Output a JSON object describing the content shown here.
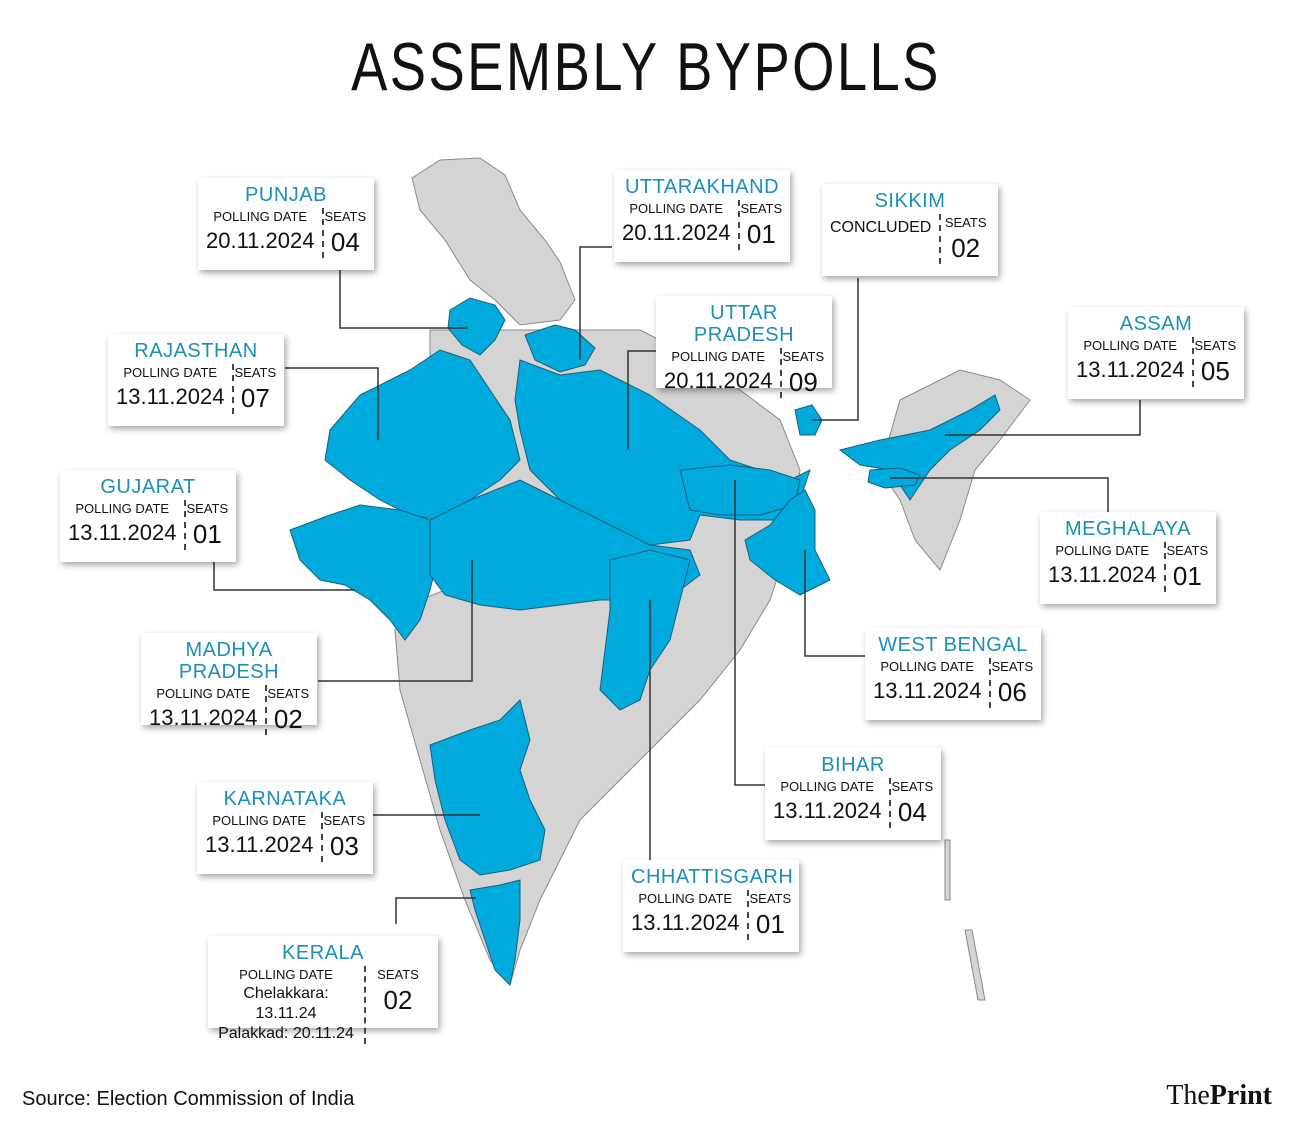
{
  "title": "ASSEMBLY BYPOLLS",
  "colors": {
    "highlight": "#00aadd",
    "land": "#d4d4d4",
    "state_name": "#1a8fb7"
  },
  "labels": {
    "polling_date": "POLLING DATE",
    "seats": "SEATS"
  },
  "states": {
    "punjab": {
      "name": "PUNJAB",
      "date": "20.11.2024",
      "seats": "04"
    },
    "uttarakhand": {
      "name": "UTTARAKHAND",
      "date": "20.11.2024",
      "seats": "01"
    },
    "sikkim": {
      "name": "SIKKIM",
      "status": "CONCLUDED",
      "seats": "02"
    },
    "uttar_pradesh": {
      "name": "UTTAR PRADESH",
      "date": "20.11.2024",
      "seats": "09"
    },
    "assam": {
      "name": "ASSAM",
      "date": "13.11.2024",
      "seats": "05"
    },
    "rajasthan": {
      "name": "RAJASTHAN",
      "date": "13.11.2024",
      "seats": "07"
    },
    "gujarat": {
      "name": "GUJARAT",
      "date": "13.11.2024",
      "seats": "01"
    },
    "meghalaya": {
      "name": "MEGHALAYA",
      "date": "13.11.2024",
      "seats": "01"
    },
    "madhya_pradesh": {
      "name": "MADHYA PRADESH",
      "date": "13.11.2024",
      "seats": "02"
    },
    "west_bengal": {
      "name": "WEST BENGAL",
      "date": "13.11.2024",
      "seats": "06"
    },
    "bihar": {
      "name": "BIHAR",
      "date": "13.11.2024",
      "seats": "04"
    },
    "karnataka": {
      "name": "KARNATAKA",
      "date": "13.11.2024",
      "seats": "03"
    },
    "chhattisgarh": {
      "name": "CHHATTISGARH",
      "date": "13.11.2024",
      "seats": "01"
    },
    "kerala": {
      "name": "KERALA",
      "line1_place": "Chelakkara:",
      "line1_date": "13.11.24",
      "line2_place": "Palakkad:",
      "line2_date": "20.11.24",
      "seats": "02"
    }
  },
  "source": "Source: Election Commission of India",
  "brand": {
    "the": "The",
    "print": "Print"
  }
}
